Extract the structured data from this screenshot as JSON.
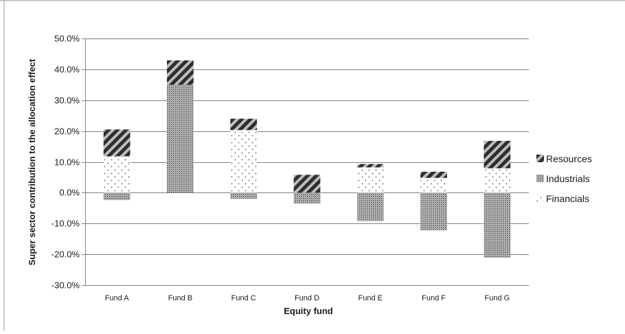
{
  "chart_data": {
    "type": "bar",
    "stacked": true,
    "categories": [
      "Fund A",
      "Fund B",
      "Fund C",
      "Fund D",
      "Fund E",
      "Fund F",
      "Fund G"
    ],
    "series": [
      {
        "name": "Financials",
        "values": [
          0.118,
          0.0,
          0.203,
          0.0,
          0.082,
          0.048,
          0.079
        ]
      },
      {
        "name": "Industrials",
        "values": [
          -0.024,
          0.35,
          -0.02,
          -0.035,
          -0.092,
          -0.122,
          -0.211
        ]
      },
      {
        "name": "Resources",
        "values": [
          0.087,
          0.079,
          0.037,
          0.058,
          0.011,
          0.02,
          0.089
        ]
      }
    ],
    "xlabel": "Equity fund",
    "ylabel": "Super sector contribution to the allocation effect",
    "ylim": [
      -0.3,
      0.5
    ],
    "y_ticks": [
      "50.0%",
      "40.0%",
      "30.0%",
      "20.0%",
      "10.0%",
      "0.0%",
      "-10.0%",
      "-20.0%",
      "-30.0%"
    ],
    "legend_order": [
      "Resources",
      "Industrials",
      "Financials"
    ],
    "legend_position": "right",
    "grid": true,
    "colors": {
      "grid": "#808080",
      "axis": "#808080",
      "ink": "#2b2b2b"
    }
  }
}
